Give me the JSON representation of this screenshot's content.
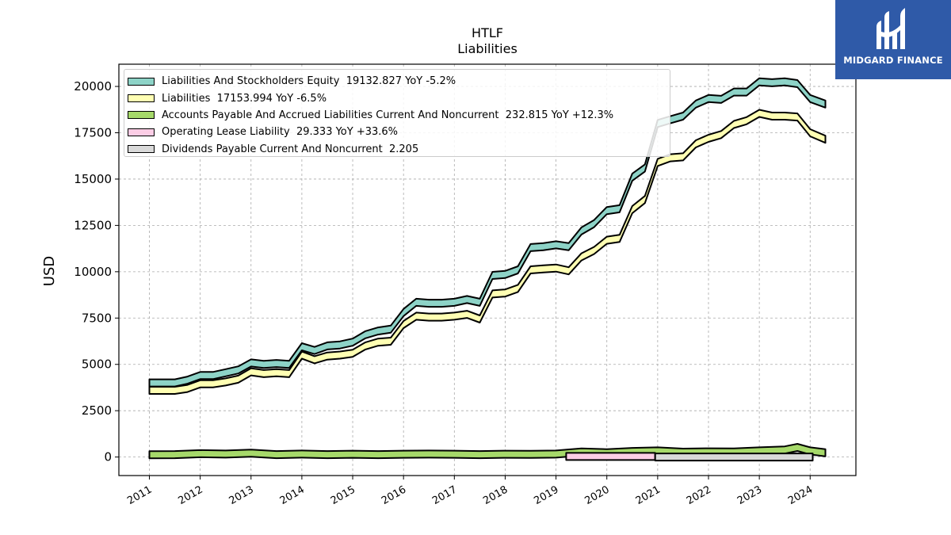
{
  "brand": {
    "name": "MIDGARD FINANCE",
    "background": "#2f5aa8",
    "icon": "midgard-logo-icon"
  },
  "chart_data": {
    "type": "area",
    "title": "HTLF",
    "subtitle": "Liabilities",
    "ylabel": "USD",
    "xlabel": "",
    "ylim": [
      -1000,
      21200
    ],
    "xlim": [
      2010.4,
      2024.9
    ],
    "yticks": [
      0,
      2500,
      5000,
      7500,
      10000,
      12500,
      15000,
      17500,
      20000
    ],
    "xticks": [
      2011,
      2012,
      2013,
      2014,
      2015,
      2016,
      2017,
      2018,
      2019,
      2020,
      2021,
      2022,
      2023,
      2024
    ],
    "grid": true,
    "legend_position": "top-left",
    "series": [
      {
        "name": "Liabilities And Stockholders Equity",
        "legend_label": "Liabilities And Stockholders Equity  19132.827 YoY -5.2%",
        "color": "#8dd3c7",
        "x": [
          2011.0,
          2011.25,
          2011.5,
          2011.75,
          2012.0,
          2012.25,
          2012.5,
          2012.75,
          2013.0,
          2013.25,
          2013.5,
          2013.75,
          2014.0,
          2014.25,
          2014.5,
          2014.75,
          2015.0,
          2015.25,
          2015.5,
          2015.75,
          2016.0,
          2016.25,
          2016.5,
          2016.75,
          2017.0,
          2017.25,
          2017.5,
          2017.75,
          2018.0,
          2018.25,
          2018.5,
          2018.75,
          2019.0,
          2019.25,
          2019.5,
          2019.75,
          2020.0,
          2020.25,
          2020.5,
          2020.75,
          2021.0,
          2021.25,
          2021.5,
          2021.75,
          2022.0,
          2022.25,
          2022.5,
          2022.75,
          2023.0,
          2023.25,
          2023.5,
          2023.75,
          2024.0,
          2024.3
        ],
        "values": [
          4000,
          4000,
          4000,
          4150,
          4400,
          4400,
          4550,
          4700,
          5080,
          5000,
          5050,
          5000,
          5950,
          5750,
          6000,
          6050,
          6200,
          6600,
          6800,
          6900,
          7800,
          8350,
          8300,
          8300,
          8350,
          8500,
          8350,
          9800,
          9850,
          10100,
          11300,
          11350,
          11450,
          11350,
          12200,
          12600,
          13300,
          13400,
          15100,
          15600,
          18000,
          18200,
          18400,
          19050,
          19350,
          19300,
          19700,
          19700,
          20250,
          20200,
          20250,
          20150,
          19350,
          19050
        ]
      },
      {
        "name": "Liabilities",
        "legend_label": "Liabilities  17153.994 YoY -6.5%",
        "color": "#ffffb3",
        "x": [
          2011.0,
          2011.25,
          2011.5,
          2011.75,
          2012.0,
          2012.25,
          2012.5,
          2012.75,
          2013.0,
          2013.25,
          2013.5,
          2013.75,
          2014.0,
          2014.25,
          2014.5,
          2014.75,
          2015.0,
          2015.25,
          2015.5,
          2015.75,
          2016.0,
          2016.25,
          2016.5,
          2016.75,
          2017.0,
          2017.25,
          2017.5,
          2017.75,
          2018.0,
          2018.25,
          2018.5,
          2018.75,
          2019.0,
          2019.25,
          2019.5,
          2019.75,
          2020.0,
          2020.25,
          2020.5,
          2020.75,
          2021.0,
          2021.25,
          2021.5,
          2021.75,
          2022.0,
          2022.25,
          2022.5,
          2022.75,
          2023.0,
          2023.25,
          2023.5,
          2023.75,
          2024.0,
          2024.3
        ],
        "values": [
          3600,
          3600,
          3600,
          3700,
          3950,
          3950,
          4050,
          4200,
          4600,
          4500,
          4550,
          4500,
          5500,
          5250,
          5450,
          5500,
          5600,
          6000,
          6200,
          6250,
          7150,
          7600,
          7550,
          7550,
          7600,
          7700,
          7450,
          8800,
          8850,
          9100,
          10100,
          10150,
          10200,
          10050,
          10800,
          11150,
          11700,
          11800,
          13350,
          13900,
          15900,
          16150,
          16200,
          16900,
          17200,
          17400,
          17950,
          18150,
          18550,
          18400,
          18400,
          18350,
          17500,
          17150
        ]
      },
      {
        "name": "Accounts Payable And Accrued Liabilities Current And Noncurrent",
        "legend_label": "Accounts Payable And Accrued Liabilities Current And Noncurrent  232.815 YoY +12.3%",
        "color": "#a6d96a",
        "x": [
          2011.0,
          2011.5,
          2012.0,
          2012.5,
          2013.0,
          2013.5,
          2014.0,
          2014.5,
          2015.0,
          2015.5,
          2016.0,
          2016.5,
          2017.0,
          2017.5,
          2018.0,
          2018.5,
          2019.0,
          2019.5,
          2020.0,
          2020.5,
          2021.0,
          2021.5,
          2022.0,
          2022.5,
          2023.0,
          2023.5,
          2023.75,
          2024.0,
          2024.3
        ],
        "values": [
          120,
          130,
          180,
          160,
          210,
          130,
          160,
          130,
          150,
          130,
          150,
          160,
          150,
          130,
          150,
          140,
          160,
          270,
          230,
          300,
          330,
          260,
          280,
          270,
          330,
          380,
          520,
          330,
          233
        ]
      },
      {
        "name": "Operating Lease Liability",
        "legend_label": "Operating Lease Liability  29.333 YoY +33.6%",
        "color": "#fccde5",
        "x": [
          2019.2,
          2020.95
        ],
        "values": [
          29,
          29
        ]
      },
      {
        "name": "Dividends Payable Current And Noncurrent",
        "legend_label": "Dividends Payable Current And Noncurrent  2.205",
        "color": "#d9d9d9",
        "x": [
          2020.95,
          2024.05
        ],
        "values": [
          2.2,
          2.2
        ]
      }
    ]
  }
}
